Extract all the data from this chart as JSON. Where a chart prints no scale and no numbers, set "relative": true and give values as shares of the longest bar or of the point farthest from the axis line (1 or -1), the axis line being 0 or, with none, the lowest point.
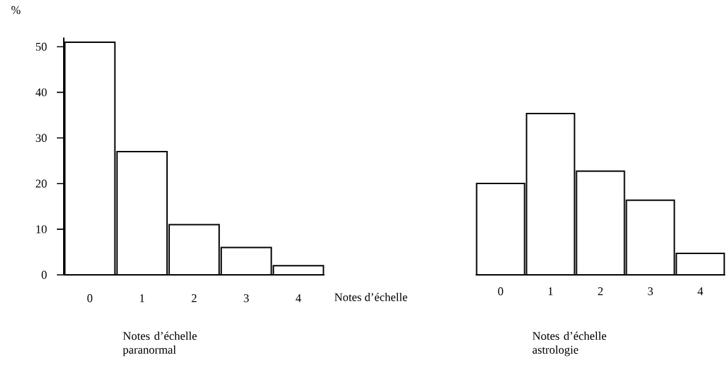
{
  "chart_data": [
    {
      "type": "bar",
      "ylabel": "%",
      "xlabel": "Notes d’échelle paranormal",
      "categories": [
        "0",
        "1",
        "2",
        "3",
        "4"
      ],
      "values": [
        51,
        27,
        11,
        6,
        2
      ],
      "color": "#ffffff",
      "ylim": [
        0,
        52
      ],
      "yticks": [
        0,
        10,
        20,
        30,
        40,
        50
      ],
      "annotations": [
        "Notes d’échelle"
      ]
    },
    {
      "type": "bar",
      "xlabel": "Notes d’échelle astrologie",
      "categories": [
        "0",
        "1",
        "2",
        "3",
        "4"
      ],
      "values": [
        0.567,
        1,
        0.643,
        0.462,
        0.133
      ],
      "relative": true,
      "color": "#ffffff",
      "tick_labels": "x"
    }
  ]
}
